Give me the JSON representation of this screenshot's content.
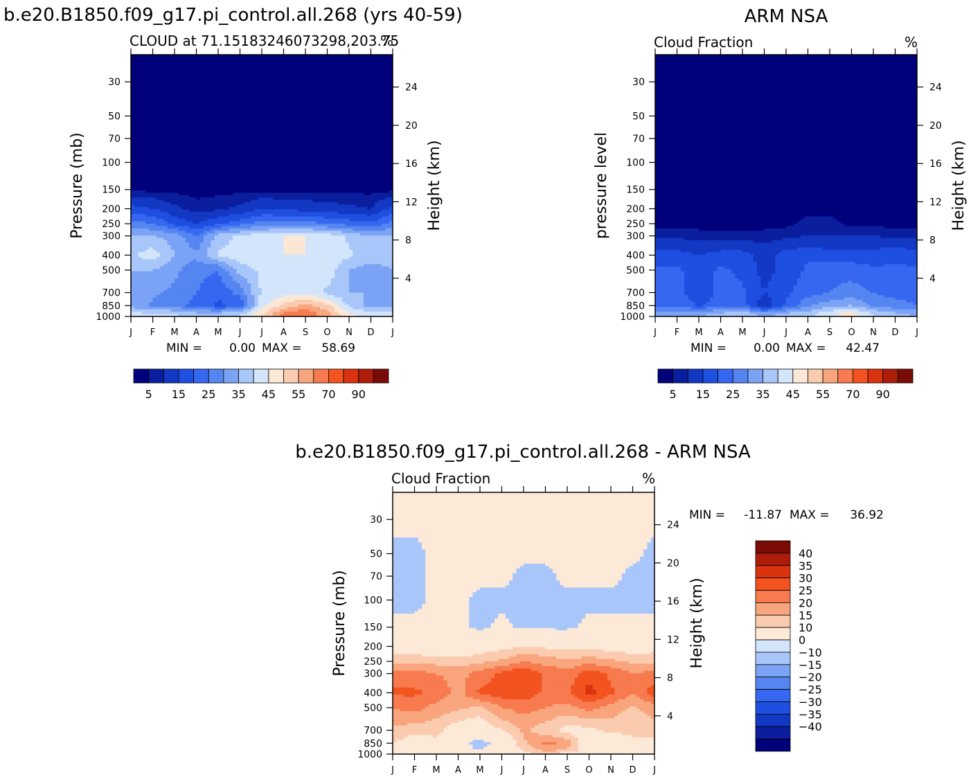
{
  "palettes": {
    "cloud": [
      "#00007a",
      "#0a1e9e",
      "#1238c4",
      "#1f4fe0",
      "#3567f0",
      "#5585f0",
      "#7ba3f5",
      "#a9c6fa",
      "#d3e5fb",
      "#fbe7d6",
      "#fbcbb0",
      "#f9a57d",
      "#f77b4e",
      "#f2531f",
      "#d9340f",
      "#ad1d0a",
      "#7a0b05"
    ],
    "diff": [
      "#00007a",
      "#0a1e9e",
      "#1238c4",
      "#1f4fe0",
      "#3567f0",
      "#5585f0",
      "#7ba3f5",
      "#a9c6fa",
      "#d3e5fb",
      "#fde9d8",
      "#fbcbb0",
      "#f9a57d",
      "#f77b4e",
      "#f2531f",
      "#d9340f",
      "#ad1d0a",
      "#7a0b05"
    ]
  },
  "chart_data": [
    {
      "type": "heatmap",
      "id": "model",
      "main_title": "b.e20.B1850.f09_g17.pi_control.all.268 (yrs 40-59)",
      "subtitle_left": "CLOUD at 71.15183246073298,203.75",
      "subtitle_right": "%",
      "ylabel": "Pressure (mb)",
      "y2label": "Height (km)",
      "months": [
        "J",
        "F",
        "M",
        "A",
        "M",
        "J",
        "J",
        "A",
        "S",
        "O",
        "N",
        "D",
        "J"
      ],
      "pressure_ticks": [
        30,
        50,
        70,
        100,
        150,
        200,
        250,
        300,
        400,
        500,
        700,
        850,
        1000
      ],
      "height_ticks": [
        24,
        20,
        16,
        12,
        8,
        4
      ],
      "ylim_mb": [
        20,
        1000
      ],
      "min_label": "MIN =",
      "min_value": "0.00",
      "max_label": "MAX =",
      "max_value": "58.69",
      "colorbar_labels": [
        "5",
        "15",
        "25",
        "35",
        "45",
        "55",
        "70",
        "90"
      ],
      "levels": [
        0,
        2,
        5,
        10,
        15,
        20,
        25,
        30,
        35,
        40,
        45,
        50,
        55,
        60,
        70,
        80,
        90
      ],
      "palette": "cloud",
      "grid_pressure": [
        20,
        30,
        50,
        70,
        100,
        150,
        200,
        250,
        300,
        400,
        500,
        700,
        850,
        950,
        1000
      ],
      "values": [
        [
          1,
          1,
          1,
          1,
          1,
          1,
          1,
          1,
          1,
          1,
          1,
          1,
          1
        ],
        [
          1,
          1,
          1,
          1,
          1,
          1,
          1,
          1,
          1,
          1,
          1,
          1,
          1
        ],
        [
          1,
          1,
          1,
          1,
          1,
          1,
          1,
          1,
          1,
          1,
          1,
          1,
          1
        ],
        [
          1,
          1,
          1,
          1,
          1,
          1,
          1,
          1,
          1,
          1,
          1,
          1,
          1
        ],
        [
          1,
          1,
          1,
          1,
          1,
          1,
          1,
          1,
          1,
          1,
          1,
          1,
          1
        ],
        [
          1,
          1,
          1,
          1,
          1,
          1,
          1,
          1,
          1,
          1,
          1,
          1,
          1
        ],
        [
          12,
          10,
          6,
          3,
          4,
          6,
          10,
          9,
          8,
          7,
          6,
          5,
          12
        ],
        [
          22,
          20,
          14,
          10,
          14,
          18,
          22,
          22,
          22,
          20,
          18,
          16,
          22
        ],
        [
          30,
          30,
          28,
          20,
          32,
          36,
          38,
          40,
          40,
          38,
          34,
          30,
          30
        ],
        [
          34,
          38,
          30,
          26,
          36,
          38,
          40,
          40,
          40,
          38,
          36,
          32,
          32
        ],
        [
          30,
          30,
          26,
          22,
          20,
          32,
          36,
          38,
          38,
          38,
          30,
          28,
          30
        ],
        [
          30,
          26,
          24,
          20,
          16,
          22,
          36,
          38,
          38,
          34,
          30,
          30,
          30
        ],
        [
          28,
          24,
          22,
          18,
          14,
          16,
          38,
          46,
          52,
          46,
          34,
          28,
          28
        ],
        [
          36,
          34,
          34,
          30,
          30,
          32,
          44,
          56,
          59,
          52,
          40,
          36,
          36
        ],
        [
          38,
          36,
          36,
          34,
          34,
          36,
          46,
          56,
          58,
          52,
          42,
          38,
          38
        ]
      ]
    },
    {
      "type": "heatmap",
      "id": "obs",
      "main_title": "ARM NSA",
      "subtitle_left": "Cloud Fraction",
      "subtitle_right": "%",
      "ylabel": "pressure level",
      "y2label": "Height (km)",
      "months": [
        "J",
        "F",
        "M",
        "A",
        "M",
        "J",
        "J",
        "A",
        "S",
        "O",
        "N",
        "D",
        "J"
      ],
      "pressure_ticks": [
        30,
        50,
        70,
        100,
        150,
        200,
        250,
        300,
        400,
        500,
        700,
        850,
        1000
      ],
      "height_ticks": [
        24,
        20,
        16,
        12,
        8,
        4
      ],
      "ylim_mb": [
        20,
        1000
      ],
      "min_label": "MIN =",
      "min_value": "0.00",
      "max_label": "MAX =",
      "max_value": "42.47",
      "colorbar_labels": [
        "5",
        "15",
        "25",
        "35",
        "45",
        "55",
        "70",
        "90"
      ],
      "levels": [
        0,
        2,
        5,
        10,
        15,
        20,
        25,
        30,
        35,
        40,
        45,
        50,
        55,
        60,
        70,
        80,
        90
      ],
      "palette": "cloud",
      "grid_pressure": [
        20,
        30,
        50,
        70,
        100,
        150,
        200,
        250,
        300,
        400,
        500,
        700,
        850,
        950,
        1000
      ],
      "values": [
        [
          1,
          1,
          1,
          1,
          1,
          1,
          1,
          1,
          1,
          1,
          1,
          1,
          1
        ],
        [
          1,
          1,
          1,
          1,
          1,
          1,
          1,
          1,
          1,
          1,
          1,
          1,
          1
        ],
        [
          1,
          1,
          1,
          1,
          1,
          1,
          1,
          1,
          1,
          1,
          1,
          1,
          1
        ],
        [
          1,
          1,
          1,
          1,
          1,
          1,
          1,
          1,
          1,
          1,
          1,
          1,
          1
        ],
        [
          1,
          1,
          1,
          1,
          1,
          1,
          1,
          1,
          1,
          1,
          1,
          1,
          1
        ],
        [
          1,
          1,
          1,
          1,
          1,
          1,
          1,
          1,
          1,
          1,
          1,
          1,
          1
        ],
        [
          1,
          1,
          1,
          1,
          1,
          1,
          1,
          1,
          1,
          1,
          1,
          1,
          1
        ],
        [
          1,
          1,
          1,
          1,
          1,
          1,
          1,
          3,
          3,
          1,
          1,
          1,
          1
        ],
        [
          4,
          4,
          3,
          3,
          3,
          3,
          4,
          5,
          5,
          5,
          5,
          4,
          4
        ],
        [
          12,
          12,
          10,
          12,
          12,
          8,
          12,
          14,
          12,
          12,
          12,
          14,
          12
        ],
        [
          16,
          16,
          12,
          16,
          14,
          8,
          12,
          16,
          18,
          18,
          16,
          16,
          16
        ],
        [
          18,
          16,
          12,
          16,
          16,
          10,
          14,
          18,
          20,
          22,
          20,
          18,
          18
        ],
        [
          18,
          20,
          14,
          18,
          18,
          6,
          16,
          24,
          28,
          30,
          24,
          22,
          20
        ],
        [
          26,
          26,
          28,
          30,
          32,
          26,
          30,
          32,
          38,
          42,
          34,
          30,
          28
        ],
        [
          30,
          30,
          30,
          32,
          34,
          30,
          32,
          34,
          40,
          42,
          36,
          32,
          30
        ]
      ]
    },
    {
      "type": "heatmap",
      "id": "diff",
      "main_title": "b.e20.B1850.f09_g17.pi_control.all.268 - ARM NSA",
      "subtitle_left": "Cloud Fraction",
      "subtitle_right": "%",
      "ylabel": "Pressure (mb)",
      "y2label": "Height (km)",
      "months": [
        "J",
        "F",
        "M",
        "A",
        "M",
        "J",
        "J",
        "A",
        "S",
        "O",
        "N",
        "D",
        "J"
      ],
      "pressure_ticks": [
        30,
        50,
        70,
        100,
        150,
        200,
        250,
        300,
        400,
        500,
        700,
        850,
        1000
      ],
      "height_ticks": [
        24,
        20,
        16,
        12,
        8,
        4
      ],
      "ylim_mb": [
        20,
        1000
      ],
      "min_label": "MIN =",
      "min_value": "-11.87",
      "max_label": "MAX =",
      "max_value": "36.92",
      "colorbar_labels": [
        "40",
        "35",
        "30",
        "25",
        "20",
        "15",
        "10",
        "0",
        "-10",
        "-15",
        "-20",
        "-25",
        "-30",
        "-35",
        "-40"
      ],
      "levels": [
        -100,
        -40,
        -35,
        -30,
        -25,
        -20,
        -15,
        -10,
        -0.0001,
        0,
        10,
        15,
        20,
        25,
        30,
        35,
        40
      ],
      "palette": "diff",
      "grid_pressure": [
        20,
        30,
        50,
        70,
        100,
        150,
        200,
        250,
        300,
        400,
        500,
        700,
        850,
        950,
        1000
      ],
      "values": [
        [
          1,
          1,
          1,
          1,
          1,
          1,
          1,
          1,
          1,
          1,
          1,
          1,
          1
        ],
        [
          1,
          1,
          1,
          1,
          1,
          1,
          1,
          1,
          1,
          1,
          1,
          1,
          1
        ],
        [
          -1,
          -1,
          1,
          1,
          1,
          1,
          1,
          1,
          1,
          1,
          1,
          1,
          -1
        ],
        [
          -1,
          -1,
          1,
          1,
          1,
          1,
          -1,
          -1,
          1,
          1,
          1,
          -1,
          -1
        ],
        [
          -1,
          -1,
          1,
          1,
          -1,
          -1,
          -1,
          -1,
          -1,
          -1,
          -1,
          -1,
          -1
        ],
        [
          1,
          1,
          1,
          1,
          -1,
          1,
          -1,
          -1,
          -1,
          1,
          1,
          1,
          1
        ],
        [
          6,
          5,
          4,
          4,
          6,
          8,
          10,
          9,
          8,
          8,
          7,
          6,
          7
        ],
        [
          14,
          14,
          13,
          12,
          14,
          16,
          20,
          18,
          16,
          18,
          16,
          14,
          14
        ],
        [
          22,
          22,
          20,
          18,
          22,
          26,
          30,
          24,
          22,
          28,
          24,
          20,
          22
        ],
        [
          26,
          26,
          24,
          18,
          26,
          28,
          28,
          24,
          24,
          32,
          26,
          20,
          28
        ],
        [
          20,
          22,
          18,
          16,
          14,
          20,
          22,
          20,
          18,
          22,
          18,
          14,
          18
        ],
        [
          14,
          12,
          12,
          6,
          4,
          10,
          16,
          12,
          8,
          8,
          12,
          12,
          12
        ],
        [
          10,
          6,
          8,
          2,
          -2,
          2,
          14,
          22,
          18,
          4,
          2,
          8,
          8
        ],
        [
          8,
          6,
          6,
          2,
          0,
          4,
          10,
          16,
          14,
          6,
          4,
          4,
          6
        ],
        [
          6,
          6,
          4,
          2,
          0,
          2,
          8,
          10,
          6,
          4,
          4,
          4,
          6
        ]
      ]
    }
  ]
}
